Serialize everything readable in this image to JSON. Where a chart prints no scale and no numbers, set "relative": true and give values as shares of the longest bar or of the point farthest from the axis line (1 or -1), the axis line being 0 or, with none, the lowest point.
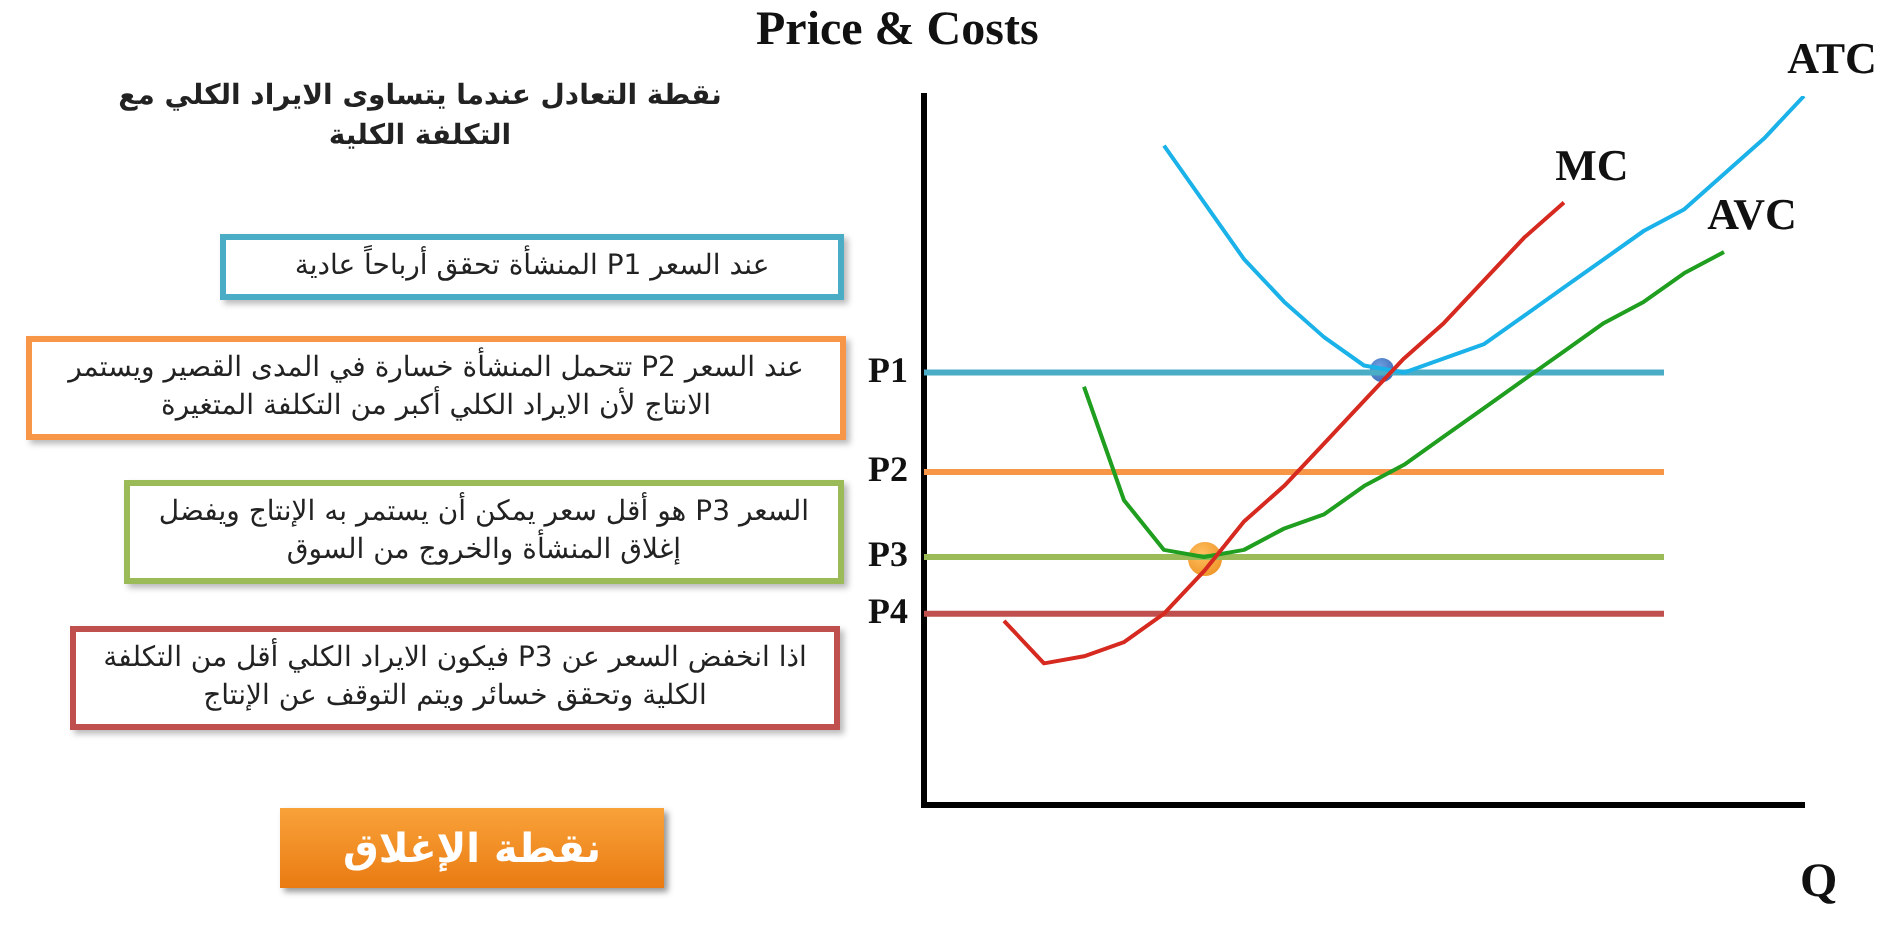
{
  "chart_data": {
    "type": "line",
    "ylabel": "Price & Costs",
    "xlabel": "Q",
    "relative": true,
    "legend": false,
    "grid": false,
    "marker": "none",
    "categories": [
      null,
      null,
      null,
      null,
      null,
      null,
      null,
      null,
      null,
      null,
      null,
      null,
      null,
      null,
      null,
      null,
      null,
      null,
      null,
      null,
      null,
      null,
      null
    ],
    "series": [
      {
        "name": "MC",
        "color": "#d62a20",
        "values": [
          null,
          null,
          0.26,
          0.2,
          0.21,
          0.23,
          0.27,
          0.33,
          0.4,
          0.45,
          0.51,
          0.57,
          0.63,
          0.68,
          0.74,
          0.8,
          0.85,
          null,
          null,
          null,
          null,
          null,
          null
        ]
      },
      {
        "name": "ATC",
        "color": "#1ab2e8",
        "values": [
          null,
          null,
          null,
          null,
          null,
          null,
          0.93,
          0.85,
          0.77,
          0.71,
          0.66,
          0.62,
          0.61,
          0.63,
          0.65,
          0.69,
          0.73,
          0.77,
          0.81,
          0.84,
          0.89,
          0.94,
          1.0
        ]
      },
      {
        "name": "AVC",
        "color": "#1f9e1f",
        "values": [
          null,
          null,
          null,
          null,
          0.59,
          0.43,
          0.36,
          0.35,
          0.36,
          0.39,
          0.41,
          0.45,
          0.48,
          0.52,
          0.56,
          0.6,
          0.64,
          0.68,
          0.71,
          0.75,
          0.78,
          null,
          null
        ]
      }
    ],
    "ref_lines": [
      {
        "axis": "y",
        "value": 0.61,
        "label": "P1",
        "color": "#4bacc6"
      },
      {
        "axis": "y",
        "value": 0.47,
        "label": "P2",
        "color": "#f79646"
      },
      {
        "axis": "y",
        "value": 0.35,
        "label": "P3",
        "color": "#9bbb59"
      },
      {
        "axis": "y",
        "value": 0.27,
        "label": "P4",
        "color": "#c0504d"
      }
    ],
    "annotations": [
      "نقطة التعادل عندما يتساوى الايراد الكلي مع التكلفة الكلية",
      "عند السعر P1 المنشأة تحقق أرباحاً عادية",
      "عند السعر P2 تتحمل المنشأة خسارة في المدى القصير ويستمر الانتاج لأن الايراد الكلي أكبر من التكلفة المتغيرة",
      "السعر P3 هو أقل سعر يمكن أن يستمر به الإنتاج ويفضل إغلاق المنشأة والخروج من السوق",
      "اذا انخفض السعر عن P3 فيكون الايراد الكلي أقل من التكلفة الكلية وتحقق خسائر ويتم التوقف عن الإنتاج",
      "نقطة الإغلاق"
    ]
  }
}
